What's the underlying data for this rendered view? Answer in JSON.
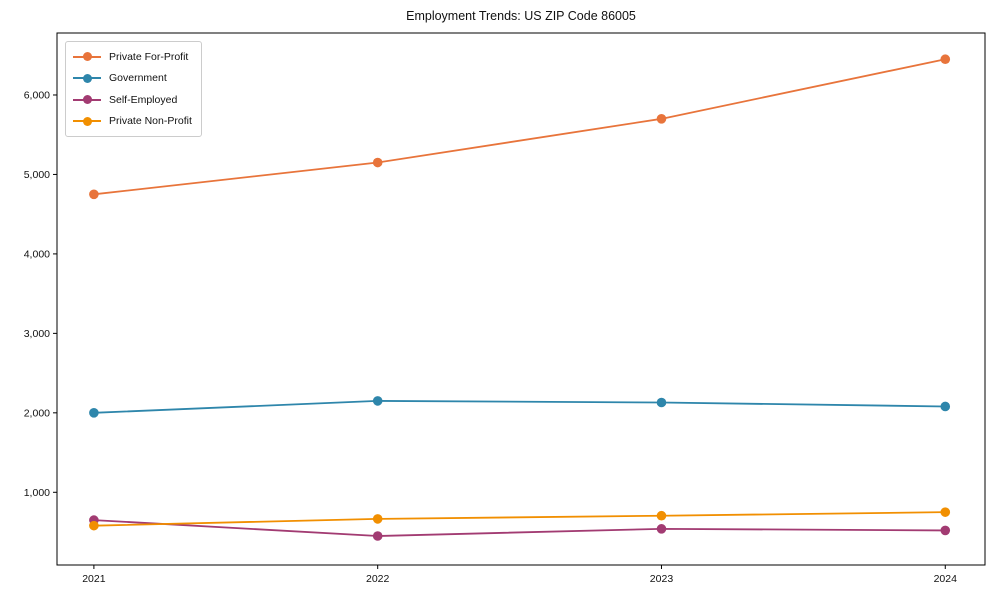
{
  "page": {
    "title": "Employment Trends: US ZIP Code 86005"
  },
  "chart_data": {
    "type": "line",
    "title": "Employment Trends: US ZIP Code 86005",
    "xlabel": "",
    "ylabel": "",
    "x": [
      2021,
      2022,
      2023,
      2024
    ],
    "x_tick_labels": [
      "2021",
      "2022",
      "2023",
      "2024"
    ],
    "y_ticks": [
      1000,
      2000,
      3000,
      4000,
      5000,
      6000
    ],
    "y_tick_labels": [
      "1,000",
      "2,000",
      "3,000",
      "4,000",
      "5,000",
      "6,000"
    ],
    "xlim": [
      2020.87,
      2024.14
    ],
    "ylim": [
      85,
      6780
    ],
    "grid": false,
    "legend_position": "upper-left",
    "series": [
      {
        "name": "Private For-Profit",
        "color": "#E8743B",
        "values": [
          4750,
          5150,
          5700,
          6450
        ]
      },
      {
        "name": "Government",
        "color": "#2E86AB",
        "values": [
          2000,
          2150,
          2130,
          2080
        ]
      },
      {
        "name": "Self-Employed",
        "color": "#A23B72",
        "values": [
          650,
          450,
          540,
          520
        ]
      },
      {
        "name": "Private Non-Profit",
        "color": "#F18F01",
        "values": [
          580,
          665,
          705,
          750
        ]
      }
    ]
  }
}
